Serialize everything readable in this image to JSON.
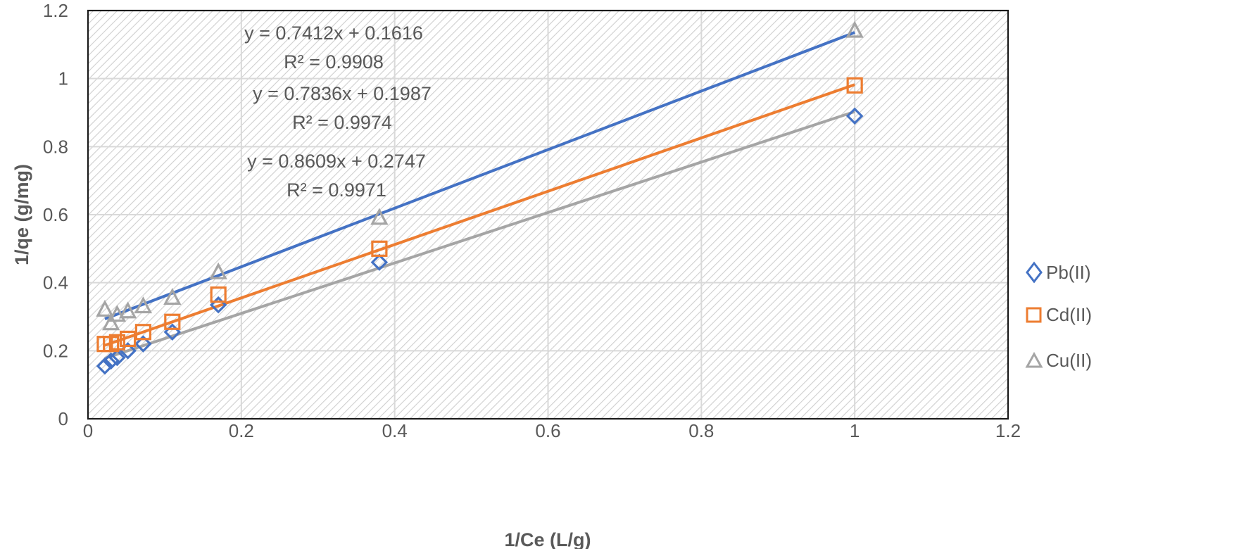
{
  "chart_data": {
    "type": "scatter",
    "xlabel": "1/Ce (L/g)",
    "ylabel": "1/qe (g/mg)",
    "xlim": [
      0,
      1.2
    ],
    "ylim": [
      0,
      1.2
    ],
    "x_ticks": [
      "0",
      "0.2",
      "0.4",
      "0.6",
      "0.8",
      "1",
      "1.2"
    ],
    "y_ticks": [
      "0",
      "0.2",
      "0.4",
      "0.6",
      "0.8",
      "1",
      "1.2"
    ],
    "grid": true,
    "legend_position": "right",
    "series": [
      {
        "name": "Pb(II)",
        "marker": "diamond",
        "color": "#4472C4",
        "x": [
          0.022,
          0.03,
          0.038,
          0.052,
          0.072,
          0.11,
          0.17,
          0.38,
          1.0
        ],
        "y": [
          0.155,
          0.17,
          0.18,
          0.2,
          0.22,
          0.255,
          0.335,
          0.46,
          0.89
        ],
        "trendline": {
          "slope": 0.8609,
          "intercept": 0.2747,
          "x_range": [
            0.022,
            1.0
          ]
        }
      },
      {
        "name": "Cd(II)",
        "marker": "square",
        "color": "#ED7D31",
        "x": [
          0.022,
          0.03,
          0.038,
          0.052,
          0.072,
          0.11,
          0.17,
          0.38,
          1.0
        ],
        "y": [
          0.22,
          0.22,
          0.225,
          0.235,
          0.255,
          0.285,
          0.365,
          0.5,
          0.98
        ],
        "trendline": {
          "slope": 0.7836,
          "intercept": 0.1987,
          "x_range": [
            0.022,
            1.0
          ]
        }
      },
      {
        "name": "Cu(II)",
        "marker": "triangle",
        "color": "#A5A5A5",
        "x": [
          0.022,
          0.03,
          0.038,
          0.052,
          0.072,
          0.11,
          0.17,
          0.38,
          1.0
        ],
        "y": [
          0.32,
          0.28,
          0.305,
          0.315,
          0.33,
          0.355,
          0.43,
          0.59,
          1.14
        ],
        "trendline": {
          "slope": 0.7412,
          "intercept": 0.1616,
          "x_range": [
            0.022,
            1.0
          ]
        }
      }
    ],
    "annotations": [
      {
        "eq": "y = 0.7412x + 0.1616",
        "r2": "R² = 0.9908"
      },
      {
        "eq": "y = 0.7836x + 0.1987",
        "r2": "R² = 0.9974"
      },
      {
        "eq": "y = 0.8609x + 0.2747",
        "r2": "R² = 0.9971"
      }
    ]
  }
}
